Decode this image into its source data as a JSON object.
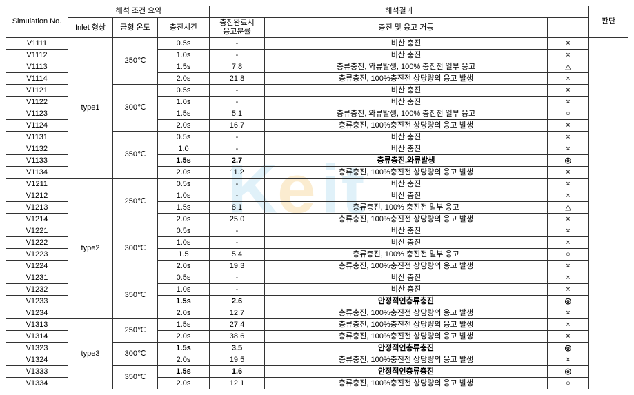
{
  "headers": {
    "sim_no": "Simulation No.",
    "cond_summary": "해석 조건 요약",
    "results": "해석결과",
    "inlet": "Inlet 형상",
    "mold_temp": "금형 온도",
    "fill_time": "충진시간",
    "solid_frac": "충진완료시\n응고분률",
    "behavior": "충진 및 응고 거동",
    "judgement": "판단"
  },
  "types": {
    "t1": "type1",
    "t2": "type2",
    "t3": "type3"
  },
  "temps": {
    "250": "250℃",
    "300": "300℃",
    "350": "350℃"
  },
  "rows": [
    {
      "sim": "V1111",
      "time": "0.5s",
      "frac": "-",
      "beh": "비산 충진",
      "jdg": "×",
      "bold": false
    },
    {
      "sim": "V1112",
      "time": "1.0s",
      "frac": "-",
      "beh": "비산 충진",
      "jdg": "×",
      "bold": false
    },
    {
      "sim": "V1113",
      "time": "1.5s",
      "frac": "7.8",
      "beh": "층류충진, 와류발생, 100% 충진전 일부 응고",
      "jdg": "△",
      "bold": false
    },
    {
      "sim": "V1114",
      "time": "2.0s",
      "frac": "21.8",
      "beh": "층류충진, 100%충진전 상당량의 응고 발생",
      "jdg": "×",
      "bold": false
    },
    {
      "sim": "V1121",
      "time": "0.5s",
      "frac": "-",
      "beh": "비산 충진",
      "jdg": "×",
      "bold": false
    },
    {
      "sim": "V1122",
      "time": "1.0s",
      "frac": "-",
      "beh": "비산 충진",
      "jdg": "×",
      "bold": false
    },
    {
      "sim": "V1123",
      "time": "1.5s",
      "frac": "5.1",
      "beh": "층류충진, 와류발생, 100% 충진전 일부 응고",
      "jdg": "○",
      "bold": false
    },
    {
      "sim": "V1124",
      "time": "2.0s",
      "frac": "16.7",
      "beh": "층류충진, 100%충진전 상당량의 응고 발생",
      "jdg": "×",
      "bold": false
    },
    {
      "sim": "V1131",
      "time": "0.5s",
      "frac": "-",
      "beh": "비산 충진",
      "jdg": "×",
      "bold": false
    },
    {
      "sim": "V1132",
      "time": "1.0",
      "frac": "-",
      "beh": "비산 충진",
      "jdg": "×",
      "bold": false
    },
    {
      "sim": "V1133",
      "time": "1.5s",
      "frac": "2.7",
      "beh": "층류충진,와류발생",
      "jdg": "◎",
      "bold": true
    },
    {
      "sim": "V1134",
      "time": "2.0s",
      "frac": "11.2",
      "beh": "층류충진, 100%충진전 상당량의 응고 발생",
      "jdg": "×",
      "bold": false
    },
    {
      "sim": "V1211",
      "time": "0.5s",
      "frac": "-",
      "beh": "비산 충진",
      "jdg": "×",
      "bold": false
    },
    {
      "sim": "V1212",
      "time": "1.0s",
      "frac": "-",
      "beh": "비산 충진",
      "jdg": "×",
      "bold": false
    },
    {
      "sim": "V1213",
      "time": "1.5s",
      "frac": "8.1",
      "beh": "층류충진, 100% 충진전 일부 응고",
      "jdg": "△",
      "bold": false
    },
    {
      "sim": "V1214",
      "time": "2.0s",
      "frac": "25.0",
      "beh": "층류충진, 100%충진전 상당량의 응고 발생",
      "jdg": "×",
      "bold": false
    },
    {
      "sim": "V1221",
      "time": "0.5s",
      "frac": "-",
      "beh": "비산 충진",
      "jdg": "×",
      "bold": false
    },
    {
      "sim": "V1222",
      "time": "1.0s",
      "frac": "-",
      "beh": "비산 충진",
      "jdg": "×",
      "bold": false
    },
    {
      "sim": "V1223",
      "time": "1.5",
      "frac": "5.4",
      "beh": "층류충진, 100% 충진전 일부 응고",
      "jdg": "○",
      "bold": false
    },
    {
      "sim": "V1224",
      "time": "2.0s",
      "frac": "19.3",
      "beh": "층류충진, 100%충진전 상당량의 응고 발생",
      "jdg": "×",
      "bold": false
    },
    {
      "sim": "V1231",
      "time": "0.5s",
      "frac": "-",
      "beh": "비산 충진",
      "jdg": "×",
      "bold": false
    },
    {
      "sim": "V1232",
      "time": "1.0s",
      "frac": "-",
      "beh": "비산 충진",
      "jdg": "×",
      "bold": false
    },
    {
      "sim": "V1233",
      "time": "1.5s",
      "frac": "2.6",
      "beh": "안정적인층류충진",
      "jdg": "◎",
      "bold": true
    },
    {
      "sim": "V1234",
      "time": "2.0s",
      "frac": "12.7",
      "beh": "층류충진, 100%충진전 상당량의 응고 발생",
      "jdg": "×",
      "bold": false
    },
    {
      "sim": "V1313",
      "time": "1.5s",
      "frac": "27.4",
      "beh": "층류충진, 100%충진전 상당량의 응고 발생",
      "jdg": "×",
      "bold": false
    },
    {
      "sim": "V1314",
      "time": "2.0s",
      "frac": "38.6",
      "beh": "층류충진, 100%충진전 상당량의 응고 발생",
      "jdg": "×",
      "bold": false
    },
    {
      "sim": "V1323",
      "time": "1.5s",
      "frac": "3.5",
      "beh": "안정적인층류충진",
      "jdg": "◎",
      "bold": true
    },
    {
      "sim": "V1324",
      "time": "2.0s",
      "frac": "19.5",
      "beh": "층류충진, 100%충진전 상당량의 응고 발생",
      "jdg": "×",
      "bold": false
    },
    {
      "sim": "V1333",
      "time": "1.5s",
      "frac": "1.6",
      "beh": "안정적인층류충진",
      "jdg": "◎",
      "bold": true
    },
    {
      "sim": "V1334",
      "time": "2.0s",
      "frac": "12.1",
      "beh": "층류충진, 100%충진전 상당량의 응고 발생",
      "jdg": "○",
      "bold": false
    }
  ],
  "spans": {
    "inlet": [
      {
        "start": 0,
        "span": 12,
        "key": "t1"
      },
      {
        "start": 12,
        "span": 12,
        "key": "t2"
      },
      {
        "start": 24,
        "span": 6,
        "key": "t3"
      }
    ],
    "temp": [
      {
        "start": 0,
        "span": 4,
        "key": "250"
      },
      {
        "start": 4,
        "span": 4,
        "key": "300"
      },
      {
        "start": 8,
        "span": 4,
        "key": "350"
      },
      {
        "start": 12,
        "span": 4,
        "key": "250"
      },
      {
        "start": 16,
        "span": 4,
        "key": "300"
      },
      {
        "start": 20,
        "span": 4,
        "key": "350"
      },
      {
        "start": 24,
        "span": 2,
        "key": "250"
      },
      {
        "start": 26,
        "span": 2,
        "key": "300"
      },
      {
        "start": 28,
        "span": 2,
        "key": "350"
      }
    ]
  },
  "watermark": {
    "text": "Keit",
    "colors": {
      "k": "#a7d8f0",
      "e": "#f5c97a",
      "i": "#a7d8f0",
      "t": "#a7d8f0"
    },
    "font_size": 90
  }
}
